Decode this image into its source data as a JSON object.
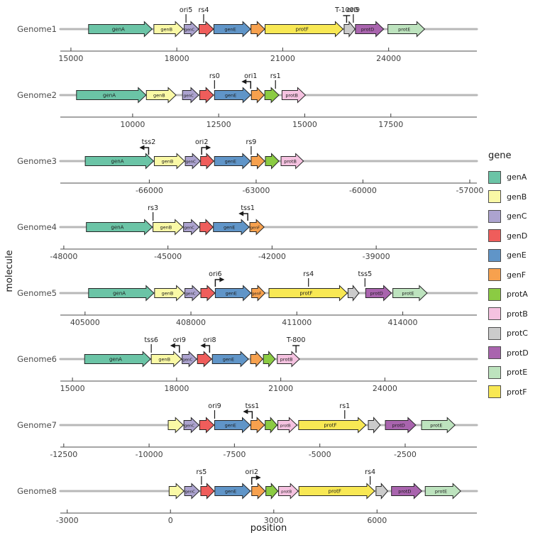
{
  "figure": {
    "x_axis_title": "position",
    "y_axis_title": "molecule",
    "legend": {
      "title": "gene",
      "entries": [
        {
          "label": "genA",
          "color": "#6BC4A6"
        },
        {
          "label": "genB",
          "color": "#FAF9A6"
        },
        {
          "label": "genC",
          "color": "#ACA3CF"
        },
        {
          "label": "genD",
          "color": "#EF5D5B"
        },
        {
          "label": "genE",
          "color": "#6095C8"
        },
        {
          "label": "genF",
          "color": "#F7A14E"
        },
        {
          "label": "protA",
          "color": "#8BCB43"
        },
        {
          "label": "protB",
          "color": "#F5C2E0"
        },
        {
          "label": "protC",
          "color": "#CBCBCB"
        },
        {
          "label": "protD",
          "color": "#A964AE"
        },
        {
          "label": "protE",
          "color": "#BDE3BE"
        },
        {
          "label": "protF",
          "color": "#F8E854"
        }
      ]
    },
    "colors": {
      "backbone": "#B8B8B8",
      "arrow_outline": "#262626",
      "axis_line": "#4D4D4D",
      "tick_label": "#404040",
      "facet_label": "#4D4D4D",
      "feature": "#1a1a1a"
    }
  },
  "chart_data": {
    "type": "gene-map",
    "facets": [
      {
        "name": "Genome1",
        "xlim": [
          14700,
          26500
        ],
        "ticks": [
          15000,
          18000,
          21000,
          24000
        ],
        "genes": [
          {
            "gene": "genA",
            "start": 15500,
            "end": 17300,
            "show_label": true
          },
          {
            "gene": "genB",
            "start": 17350,
            "end": 18180,
            "show_label": true
          },
          {
            "gene": "genC",
            "start": 18210,
            "end": 18620,
            "show_label": true
          },
          {
            "gene": "genD",
            "start": 18630,
            "end": 19040,
            "show_label": false
          },
          {
            "gene": "genE",
            "start": 19050,
            "end": 20090,
            "show_label": true
          },
          {
            "gene": "genF",
            "start": 20100,
            "end": 20490,
            "show_label": false
          },
          {
            "gene": "protF",
            "start": 20500,
            "end": 22710,
            "show_label": true
          },
          {
            "gene": "protC",
            "start": 22740,
            "end": 23050,
            "show_label": false
          },
          {
            "gene": "protD",
            "start": 23060,
            "end": 23860,
            "show_label": true
          },
          {
            "gene": "protE",
            "start": 23980,
            "end": 25020,
            "show_label": true
          }
        ],
        "features": [
          {
            "name": "ori5",
            "pos": 18260,
            "type": "line"
          },
          {
            "name": "rs4",
            "pos": 18760,
            "type": "line"
          },
          {
            "name": "T-1000",
            "pos": 22810,
            "type": "terminator"
          },
          {
            "name": "ori9",
            "pos": 23000,
            "type": "line"
          }
        ]
      },
      {
        "name": "Genome2",
        "xlim": [
          7900,
          20000
        ],
        "ticks": [
          10000,
          12500,
          15000,
          17500
        ],
        "genes": [
          {
            "gene": "genA",
            "start": 8370,
            "end": 10390,
            "show_label": true
          },
          {
            "gene": "genB",
            "start": 10400,
            "end": 11260,
            "show_label": true
          },
          {
            "gene": "genC",
            "start": 11450,
            "end": 11920,
            "show_label": true
          },
          {
            "gene": "genD",
            "start": 11950,
            "end": 12350,
            "show_label": false
          },
          {
            "gene": "genE",
            "start": 12380,
            "end": 13430,
            "show_label": true
          },
          {
            "gene": "genF",
            "start": 13450,
            "end": 13820,
            "show_label": false
          },
          {
            "gene": "protA",
            "start": 13840,
            "end": 14250,
            "show_label": false
          },
          {
            "gene": "protB",
            "start": 14340,
            "end": 15020,
            "show_label": true
          }
        ],
        "features": [
          {
            "name": "rs0",
            "pos": 12380,
            "type": "line"
          },
          {
            "name": "ori1",
            "pos": 13430,
            "type": "promoter-left"
          },
          {
            "name": "rs1",
            "pos": 14150,
            "type": "line"
          }
        ]
      },
      {
        "name": "Genome3",
        "xlim": [
          -68500,
          -56800
        ],
        "ticks": [
          -66000,
          -63000,
          -60000,
          -57000
        ],
        "genes": [
          {
            "gene": "genA",
            "start": -67800,
            "end": -65880,
            "show_label": true
          },
          {
            "gene": "genB",
            "start": -65860,
            "end": -65010,
            "show_label": true
          },
          {
            "gene": "genC",
            "start": -64990,
            "end": -64570,
            "show_label": true
          },
          {
            "gene": "genD",
            "start": -64560,
            "end": -64190,
            "show_label": false
          },
          {
            "gene": "genE",
            "start": -64170,
            "end": -63160,
            "show_label": true
          },
          {
            "gene": "genF",
            "start": -63140,
            "end": -62760,
            "show_label": false
          },
          {
            "gene": "protA",
            "start": -62740,
            "end": -62360,
            "show_label": false
          },
          {
            "gene": "protB",
            "start": -62300,
            "end": -61670,
            "show_label": true
          }
        ],
        "features": [
          {
            "name": "tss2",
            "pos": -66020,
            "type": "promoter-left"
          },
          {
            "name": "ori2",
            "pos": -64530,
            "type": "promoter-right"
          },
          {
            "name": "rs9",
            "pos": -63140,
            "type": "line"
          }
        ]
      },
      {
        "name": "Genome4",
        "xlim": [
          -48100,
          -36100
        ],
        "ticks": [
          -48000,
          -45000,
          -42000,
          -39000
        ],
        "genes": [
          {
            "gene": "genA",
            "start": -47350,
            "end": -45450,
            "show_label": true
          },
          {
            "gene": "genB",
            "start": -45430,
            "end": -44570,
            "show_label": true
          },
          {
            "gene": "genC",
            "start": -44550,
            "end": -44100,
            "show_label": true
          },
          {
            "gene": "genD",
            "start": -44080,
            "end": -43700,
            "show_label": false
          },
          {
            "gene": "genE",
            "start": -43690,
            "end": -42660,
            "show_label": true
          },
          {
            "gene": "genF",
            "start": -42640,
            "end": -42230,
            "show_label": true
          }
        ],
        "features": [
          {
            "name": "rs3",
            "pos": -45430,
            "type": "line"
          },
          {
            "name": "tss1",
            "pos": -42700,
            "type": "promoter-left"
          }
        ]
      },
      {
        "name": "Genome5",
        "xlim": [
          404300,
          416100
        ],
        "ticks": [
          405000,
          408000,
          411000,
          414000
        ],
        "genes": [
          {
            "gene": "genA",
            "start": 405100,
            "end": 406950,
            "show_label": true
          },
          {
            "gene": "genB",
            "start": 406970,
            "end": 407810,
            "show_label": true
          },
          {
            "gene": "genC",
            "start": 407830,
            "end": 408260,
            "show_label": true
          },
          {
            "gene": "genD",
            "start": 408280,
            "end": 408680,
            "show_label": false
          },
          {
            "gene": "genE",
            "start": 408690,
            "end": 409700,
            "show_label": true
          },
          {
            "gene": "genF",
            "start": 409720,
            "end": 410100,
            "show_label": true
          },
          {
            "gene": "protF",
            "start": 410210,
            "end": 412430,
            "show_label": true
          },
          {
            "gene": "protC",
            "start": 412450,
            "end": 412760,
            "show_label": false
          },
          {
            "gene": "protD",
            "start": 412950,
            "end": 413680,
            "show_label": true
          },
          {
            "gene": "protE",
            "start": 413720,
            "end": 414690,
            "show_label": true
          }
        ],
        "features": [
          {
            "name": "ori6",
            "pos": 408690,
            "type": "promoter-right"
          },
          {
            "name": "rs4",
            "pos": 411330,
            "type": "line"
          },
          {
            "name": "tss5",
            "pos": 412930,
            "type": "line"
          }
        ]
      },
      {
        "name": "Genome6",
        "xlim": [
          14650,
          26650
        ],
        "ticks": [
          15000,
          18000,
          21000,
          24000
        ],
        "genes": [
          {
            "gene": "genA",
            "start": 15350,
            "end": 17250,
            "show_label": true
          },
          {
            "gene": "genB",
            "start": 17270,
            "end": 18140,
            "show_label": true
          },
          {
            "gene": "genC",
            "start": 18160,
            "end": 18580,
            "show_label": true
          },
          {
            "gene": "genD",
            "start": 18600,
            "end": 19010,
            "show_label": false
          },
          {
            "gene": "genE",
            "start": 19030,
            "end": 20070,
            "show_label": true
          },
          {
            "gene": "genF",
            "start": 20130,
            "end": 20480,
            "show_label": false
          },
          {
            "gene": "protA",
            "start": 20500,
            "end": 20840,
            "show_label": false
          },
          {
            "gene": "protB",
            "start": 20900,
            "end": 21540,
            "show_label": true
          }
        ],
        "features": [
          {
            "name": "tss6",
            "pos": 17270,
            "type": "line"
          },
          {
            "name": "ori9",
            "pos": 18080,
            "type": "promoter-left"
          },
          {
            "name": "ori8",
            "pos": 18950,
            "type": "promoter-left"
          },
          {
            "name": "T-800",
            "pos": 21440,
            "type": "terminator"
          }
        ]
      },
      {
        "name": "Genome7",
        "xlim": [
          -12600,
          -400
        ],
        "ticks": [
          -12500,
          -10000,
          -7500,
          -5000,
          -2500
        ],
        "genes": [
          {
            "gene": "genB",
            "start": -9440,
            "end": -9000,
            "show_label": false
          },
          {
            "gene": "genC",
            "start": -8980,
            "end": -8540,
            "show_label": true
          },
          {
            "gene": "genD",
            "start": -8520,
            "end": -8100,
            "show_label": false
          },
          {
            "gene": "genE",
            "start": -8080,
            "end": -7040,
            "show_label": true
          },
          {
            "gene": "genF",
            "start": -7020,
            "end": -6620,
            "show_label": false
          },
          {
            "gene": "protA",
            "start": -6600,
            "end": -6250,
            "show_label": false
          },
          {
            "gene": "protB",
            "start": -6230,
            "end": -5670,
            "show_label": true
          },
          {
            "gene": "protF",
            "start": -5620,
            "end": -3650,
            "show_label": true
          },
          {
            "gene": "protC",
            "start": -3580,
            "end": -3230,
            "show_label": false
          },
          {
            "gene": "protD",
            "start": -3080,
            "end": -2190,
            "show_label": true
          },
          {
            "gene": "protE",
            "start": -2020,
            "end": -1040,
            "show_label": true
          }
        ],
        "features": [
          {
            "name": "ori9",
            "pos": -8080,
            "type": "line"
          },
          {
            "name": "tss1",
            "pos": -6980,
            "type": "promoter-left"
          },
          {
            "name": "rs1",
            "pos": -4270,
            "type": "line"
          }
        ]
      },
      {
        "name": "Genome8",
        "xlim": [
          -3200,
          8900
        ],
        "ticks": [
          -3000,
          0,
          3000,
          6000
        ],
        "genes": [
          {
            "gene": "genB",
            "start": -40,
            "end": 390,
            "show_label": false
          },
          {
            "gene": "genC",
            "start": 410,
            "end": 840,
            "show_label": true
          },
          {
            "gene": "genD",
            "start": 880,
            "end": 1270,
            "show_label": false
          },
          {
            "gene": "genE",
            "start": 1290,
            "end": 2320,
            "show_label": true
          },
          {
            "gene": "genF",
            "start": 2360,
            "end": 2750,
            "show_label": false
          },
          {
            "gene": "protA",
            "start": 2770,
            "end": 3120,
            "show_label": false
          },
          {
            "gene": "protB",
            "start": 3140,
            "end": 3710,
            "show_label": true
          },
          {
            "gene": "protF",
            "start": 3730,
            "end": 5930,
            "show_label": true
          },
          {
            "gene": "protC",
            "start": 5970,
            "end": 6310,
            "show_label": false
          },
          {
            "gene": "protD",
            "start": 6420,
            "end": 7300,
            "show_label": true
          },
          {
            "gene": "protE",
            "start": 7400,
            "end": 8430,
            "show_label": true
          }
        ],
        "features": [
          {
            "name": "rs5",
            "pos": 900,
            "type": "line"
          },
          {
            "name": "ori2",
            "pos": 2360,
            "type": "promoter-right"
          },
          {
            "name": "rs4",
            "pos": 5800,
            "type": "line"
          }
        ]
      }
    ]
  }
}
